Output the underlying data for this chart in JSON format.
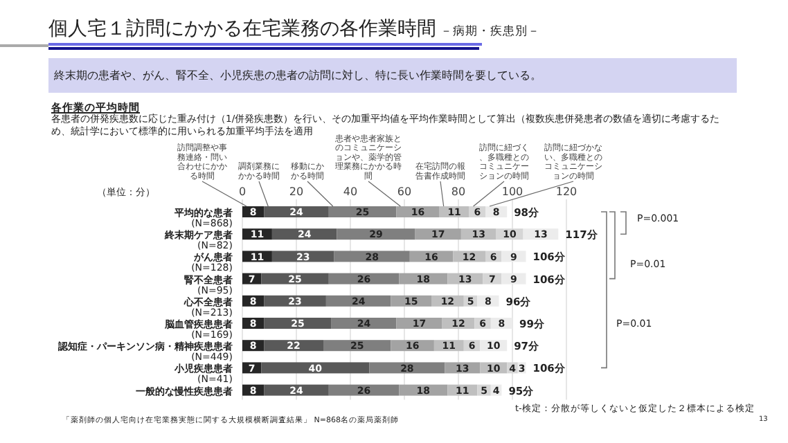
{
  "chart_data": {
    "type": "bar",
    "orientation": "horizontal",
    "stacked": true,
    "title": "個人宅１訪問にかかる在宅業務の各作業時間",
    "subtitle": "－病期・疾患別－",
    "categories": [
      "平均的な患者\n(N=868)",
      "終末期ケア患者\n(N=82)",
      "がん患者\n(N=128)",
      "腎不全患者\n(N=95)",
      "心不全患者\n(N=213)",
      "脳血管疾患患者\n(N=169)",
      "認知症・パーキンソン病・精神疾患患者\n(N=449)",
      "小児疾患患者\n(N=41)",
      "一般的な慢性疾患患者"
    ],
    "series": [
      {
        "name": "訪問調整や事務連絡・問い合わせにかかる時間",
        "color": "#262626",
        "values": [
          8,
          11,
          11,
          7,
          8,
          8,
          8,
          7,
          8
        ]
      },
      {
        "name": "調剤業務にかかる時間",
        "color": "#595959",
        "values": [
          24,
          24,
          23,
          25,
          23,
          25,
          22,
          40,
          24
        ]
      },
      {
        "name": "移動にかかる時間",
        "color": "#7f7f7f",
        "values": [
          25,
          29,
          28,
          26,
          24,
          24,
          25,
          28,
          26
        ]
      },
      {
        "name": "患者や患者家族とのコミュニケーションや、薬学的管理業務にかかる時間",
        "color": "#a3a3a3",
        "values": [
          16,
          17,
          16,
          18,
          15,
          17,
          16,
          13,
          18
        ]
      },
      {
        "name": "在宅訪問の報告書作成時間",
        "color": "#bfbfbf",
        "values": [
          11,
          13,
          12,
          13,
          12,
          12,
          11,
          10,
          11
        ]
      },
      {
        "name": "訪問に紐づく、多職種とのコミュニケーションの時間",
        "color": "#d6d6d6",
        "values": [
          6,
          10,
          6,
          7,
          5,
          6,
          6,
          4,
          5
        ]
      },
      {
        "name": "訪問に紐づかない、多職種とのコミュニケーションの時間",
        "color": "#ececec",
        "values": [
          8,
          13,
          9,
          9,
          8,
          8,
          10,
          3,
          4
        ]
      }
    ],
    "xlim": [
      0,
      120
    ],
    "xticks": [
      0,
      20,
      40,
      60,
      80,
      100,
      120
    ],
    "grid": "x",
    "legend": "top",
    "data_labels": true,
    "totals": [
      "98分",
      "117分",
      "106分",
      "106分",
      "96分",
      "99分",
      "97分",
      "106分",
      "95分"
    ],
    "annotations": [
      "終末期の患者や、がん、腎不全、小児疾患の患者の訪問に対し、特に長い作業時間を要している。",
      "各作業の平均時間",
      "各患者の併発疾患数に応じた重み付け（1/併発疾患数）を行い、その加重平均値を平均作業時間として算出（複数疾患併発患者の数値を適切に考慮するため、統計学において標準的に用いられる加重平均手法を適用",
      "（単位：分）",
      "P=0.001",
      "P=0.01",
      "P=0.01",
      "t-検定：分散が等しくないと仮定した２標本による検定",
      "「薬剤師の個人宅向け在宅業務実態に関する大規模横断調査結果」 N=868名の薬局薬剤師",
      "13"
    ]
  }
}
